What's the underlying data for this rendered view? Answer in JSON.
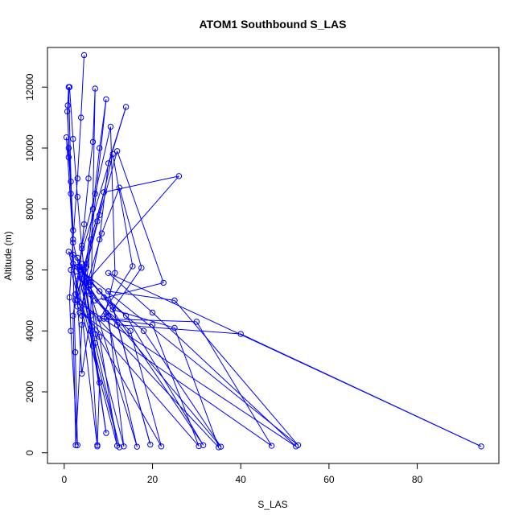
{
  "chart_data": {
    "type": "line",
    "title": "ATOM1 Southbound S_LAS",
    "xlabel": "S_LAS",
    "ylabel": "Altitude (m)",
    "xlim": [
      -3.8,
      98.5
    ],
    "ylim": [
      -350,
      13300
    ],
    "x_ticks": [
      0,
      20,
      40,
      60,
      80
    ],
    "y_ticks": [
      0,
      2000,
      4000,
      6000,
      8000,
      10000,
      12000
    ],
    "grid": false,
    "legend": "none",
    "line_color": "#0000ff",
    "marker": "open-circle",
    "series": [
      {
        "points": [
          [
            4.5,
            13050
          ],
          [
            3.8,
            11000
          ],
          [
            3.0,
            9000
          ],
          [
            2.0,
            7000
          ],
          [
            1.2,
            5100
          ],
          [
            1.5,
            4000
          ],
          [
            3.0,
            250
          ],
          [
            2.5,
            3300
          ],
          [
            1.0,
            12000
          ],
          [
            0.8,
            11400
          ],
          [
            1.0,
            10000
          ],
          [
            1.5,
            8500
          ],
          [
            2.0,
            6500
          ],
          [
            3.0,
            5000
          ],
          [
            4.0,
            2600
          ],
          [
            6.0,
            4500
          ],
          [
            7.0,
            11950
          ],
          [
            6.5,
            10200
          ],
          [
            5.5,
            9000
          ],
          [
            4.5,
            7500
          ],
          [
            3.5,
            6000
          ],
          [
            2.0,
            4500
          ],
          [
            2.6,
            250
          ],
          [
            4.0,
            4200
          ],
          [
            9.5,
            11600
          ],
          [
            8.0,
            10000
          ],
          [
            6.5,
            8000
          ],
          [
            5.0,
            6200
          ],
          [
            4.0,
            4500
          ],
          [
            7.5,
            210
          ],
          [
            6.0,
            4000
          ],
          [
            3.0,
            6100
          ],
          [
            14.0,
            11350
          ],
          [
            10.0,
            9500
          ],
          [
            8.0,
            7000
          ],
          [
            6.0,
            5500
          ],
          [
            7.0,
            3900
          ],
          [
            13.5,
            210
          ],
          [
            10.0,
            4500
          ],
          [
            5.0,
            5600
          ],
          [
            26.0,
            9080
          ],
          [
            9.0,
            8550
          ],
          [
            6.0,
            7000
          ],
          [
            4.0,
            5800
          ],
          [
            3.0,
            5000
          ],
          [
            22.0,
            210
          ],
          [
            15.0,
            4000
          ],
          [
            7.0,
            5000
          ],
          [
            22.5,
            5580
          ],
          [
            12.0,
            9900
          ],
          [
            8.0,
            7800
          ],
          [
            5.0,
            6100
          ],
          [
            3.0,
            4800
          ],
          [
            30.5,
            220
          ],
          [
            20.0,
            4200
          ],
          [
            9.0,
            4400
          ],
          [
            11.5,
            5900
          ],
          [
            10.5,
            10700
          ],
          [
            7.0,
            8500
          ],
          [
            4.0,
            6800
          ],
          [
            2.5,
            5200
          ],
          [
            35.0,
            180
          ],
          [
            25.0,
            4100
          ],
          [
            11.0,
            4700
          ],
          [
            17.5,
            6070
          ],
          [
            12.5,
            8700
          ],
          [
            8.5,
            7200
          ],
          [
            5.5,
            5700
          ],
          [
            3.5,
            4600
          ],
          [
            47.0,
            230
          ],
          [
            30.0,
            4300
          ],
          [
            8.0,
            4400
          ],
          [
            15.5,
            6120
          ],
          [
            11.0,
            9800
          ],
          [
            7.5,
            7600
          ],
          [
            4.5,
            6000
          ],
          [
            2.5,
            5000
          ],
          [
            52.5,
            210
          ],
          [
            20.0,
            4600
          ],
          [
            10.0,
            5900
          ],
          [
            94.5,
            210
          ],
          [
            40.0,
            3900
          ],
          [
            12.0,
            4200
          ],
          [
            6.0,
            5200
          ],
          [
            3.0,
            5800
          ],
          [
            35.5,
            200
          ],
          [
            18.0,
            4000
          ],
          [
            9.0,
            5100
          ],
          [
            31.5,
            250
          ],
          [
            14.0,
            4500
          ],
          [
            8.0,
            5300
          ],
          [
            4.0,
            6000
          ],
          [
            2.0,
            6200
          ],
          [
            53.0,
            250
          ],
          [
            25.0,
            5000
          ],
          [
            10.0,
            5300
          ],
          [
            19.5,
            270
          ],
          [
            11.0,
            4800
          ],
          [
            6.0,
            5600
          ],
          [
            3.5,
            6100
          ],
          [
            1.5,
            6000
          ],
          [
            12.0,
            230
          ],
          [
            8.0,
            3800
          ],
          [
            5.0,
            5700
          ],
          [
            16.5,
            200
          ],
          [
            9.5,
            4600
          ],
          [
            5.5,
            5500
          ],
          [
            3.0,
            6400
          ],
          [
            1.0,
            6600
          ],
          [
            12.5,
            180
          ],
          [
            7.0,
            3600
          ],
          [
            4.0,
            6200
          ],
          [
            9.5,
            650
          ],
          [
            6.5,
            3500
          ],
          [
            4.0,
            5700
          ],
          [
            2.0,
            6900
          ],
          [
            0.5,
            10350
          ],
          [
            1.0,
            9700
          ],
          [
            1.5,
            8900
          ],
          [
            2.0,
            7300
          ],
          [
            0.7,
            11200
          ],
          [
            1.2,
            12000
          ],
          [
            2.0,
            10300
          ],
          [
            3.0,
            8400
          ],
          [
            4.0,
            6700
          ],
          [
            5.0,
            5300
          ],
          [
            8.0,
            2300
          ],
          [
            7.5,
            250
          ]
        ]
      }
    ]
  }
}
